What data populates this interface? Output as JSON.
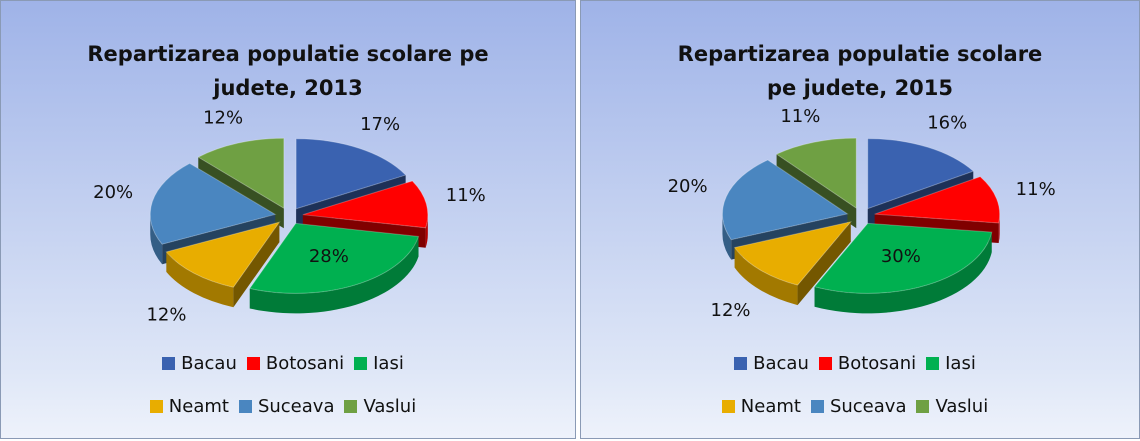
{
  "chart_data": [
    {
      "type": "pie",
      "title": "Repartizarea populatie scolare pe judete, 2013",
      "categories": [
        "Bacau",
        "Botosani",
        "Iasi",
        "Neamt",
        "Suceava",
        "Vaslui"
      ],
      "values": [
        17,
        11,
        28,
        12,
        20,
        12
      ],
      "value_labels": [
        "17%",
        "11%",
        "28%",
        "12%",
        "20%",
        "12%"
      ],
      "colors": [
        "#3a62b0",
        "#ff0000",
        "#00b050",
        "#e8ad00",
        "#4a86c0",
        "#6fa043"
      ],
      "legend": "bottom"
    },
    {
      "type": "pie",
      "title": "Repartizarea populatie scolare pe judete, 2015",
      "categories": [
        "Bacau",
        "Botosani",
        "Iasi",
        "Neamt",
        "Suceava",
        "Vaslui"
      ],
      "values": [
        16,
        11,
        30,
        12,
        20,
        11
      ],
      "value_labels": [
        "16%",
        "11%",
        "30%",
        "12%",
        "20%",
        "11%"
      ],
      "colors": [
        "#3a62b0",
        "#ff0000",
        "#00b050",
        "#e8ad00",
        "#4a86c0",
        "#6fa043"
      ],
      "legend": "bottom"
    }
  ]
}
